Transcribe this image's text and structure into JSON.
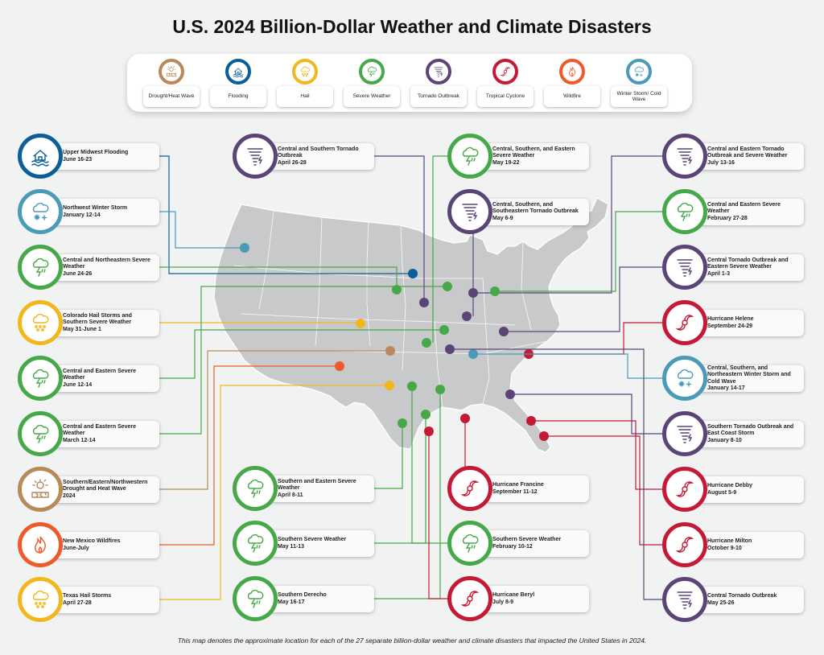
{
  "title": "U.S. 2024 Billion-Dollar Weather and Climate Disasters",
  "footnote": "This map denotes the approximate location for each of the 27 separate billion-dollar weather and climate disasters that impacted the United States in 2024.",
  "colors": {
    "drought": "#b88a5a",
    "flood": "#0b5f99",
    "hail": "#f2b71d",
    "severe": "#47a84a",
    "tornado": "#5b4577",
    "cyclone": "#c41a36",
    "wildfire": "#ef5a2a",
    "winter": "#4b9ab8",
    "map_fill": "#c8c9ca",
    "map_stroke": "#ffffff"
  },
  "legend": [
    {
      "type": "drought",
      "label": "Drought/Heat Wave",
      "icon": "sun-heat-icon"
    },
    {
      "type": "flood",
      "label": "Flooding",
      "icon": "house-flood-icon"
    },
    {
      "type": "hail",
      "label": "Hail",
      "icon": "hail-cloud-icon"
    },
    {
      "type": "severe",
      "label": "Severe Weather",
      "icon": "storm-cloud-icon"
    },
    {
      "type": "tornado",
      "label": "Tornado Outbreak",
      "icon": "tornado-icon"
    },
    {
      "type": "cyclone",
      "label": "Tropical Cyclone",
      "icon": "hurricane-icon"
    },
    {
      "type": "wildfire",
      "label": "Wildfire",
      "icon": "fire-icon"
    },
    {
      "type": "winter",
      "label": "Winter Storm/ Cold Wave",
      "icon": "snow-cloud-icon"
    }
  ],
  "events": [
    {
      "name": "Upper Midwest Flooding",
      "date": "June 16-23",
      "type": "flood"
    },
    {
      "name": "Northwest Winter Storm",
      "date": "January 12-14",
      "type": "winter"
    },
    {
      "name": "Central and Northeastern Severe Weather",
      "date": "June 24-26",
      "type": "severe"
    },
    {
      "name": "Colorado Hail Storms and Southern Severe Weather",
      "date": "May 31-June 1",
      "type": "hail"
    },
    {
      "name": "Central and Eastern Severe Weather",
      "date": "June 12-14",
      "type": "severe"
    },
    {
      "name": "Central and Eastern Severe Weather",
      "date": "March 12-14",
      "type": "severe"
    },
    {
      "name": "Southern/Eastern/Northwestern Drought and Heat Wave",
      "date": "2024",
      "type": "drought"
    },
    {
      "name": "New Mexico Wildfires",
      "date": "June-July",
      "type": "wildfire"
    },
    {
      "name": "Texas Hail Storms",
      "date": "April 27-28",
      "type": "hail"
    },
    {
      "name": "Central and Southern Tornado Outbreak",
      "date": "April 26-28",
      "type": "tornado"
    },
    {
      "name": "Southern and Eastern Severe Weather",
      "date": "April 8-11",
      "type": "severe"
    },
    {
      "name": "Southern Severe Weather",
      "date": "May 11-13",
      "type": "severe"
    },
    {
      "name": "Southern Derecho",
      "date": "May 16-17",
      "type": "severe"
    },
    {
      "name": "Central, Southern, and Eastern Severe Weather",
      "date": "May 19-22",
      "type": "severe"
    },
    {
      "name": "Central, Southern, and Southeastern Tornado Outbreak",
      "date": "May 6-9",
      "type": "tornado"
    },
    {
      "name": "Hurricane Francine",
      "date": "September 11-12",
      "type": "cyclone"
    },
    {
      "name": "Southern Severe Weather",
      "date": "February 10-12",
      "type": "severe"
    },
    {
      "name": "Hurricane Beryl",
      "date": "July 8-9",
      "type": "cyclone"
    },
    {
      "name": "Central and Eastern Tornado Outbreak and Severe Weather",
      "date": "July 13-16",
      "type": "tornado"
    },
    {
      "name": "Central and Eastern Severe Weather",
      "date": "February 27-28",
      "type": "severe"
    },
    {
      "name": "Central Tornado Outbreak and Eastern Severe Weather",
      "date": "April 1-3",
      "type": "tornado"
    },
    {
      "name": "Hurricane Helene",
      "date": "September 24-29",
      "type": "cyclone"
    },
    {
      "name": "Central, Southern, and Northeastern Winter Storm and Cold Wave",
      "date": "January 14-17",
      "type": "winter"
    },
    {
      "name": "Southern Tornado Outbreak and East Coast Storm",
      "date": "January 8-10",
      "type": "tornado"
    },
    {
      "name": "Hurricane Debby",
      "date": "August 5-9",
      "type": "cyclone"
    },
    {
      "name": "Hurricane Milton",
      "date": "October 9-10",
      "type": "cyclone"
    },
    {
      "name": "Central Tornado Outbreak",
      "date": "May 25-26",
      "type": "tornado"
    }
  ]
}
